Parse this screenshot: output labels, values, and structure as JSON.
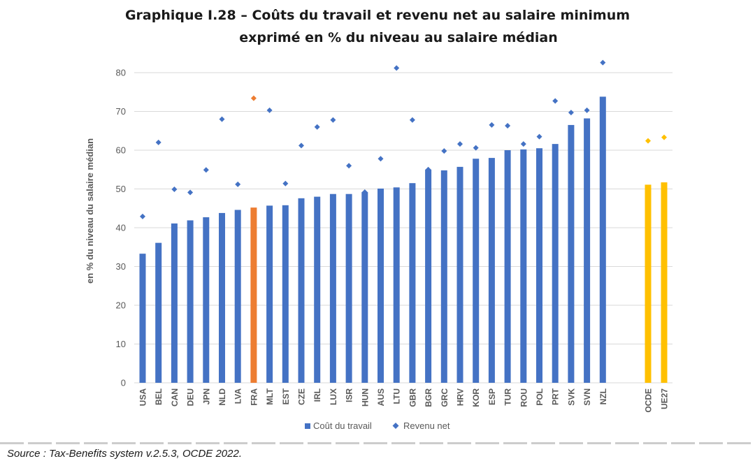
{
  "title_line1": "Graphique I.28 – Coûts du travail et revenu net au salaire minimum",
  "title_line2": "exprimé en % du niveau au salaire médian",
  "source": "Source : Tax-Benefits system v.2.5.3, OCDE 2022.",
  "colors": {
    "bar": "#4472c4",
    "bar_highlight": "#ed7d31",
    "bar_aggregate": "#ffc000",
    "grid": "#d9d9d9",
    "text": "#595959"
  },
  "chart_data": {
    "type": "bar",
    "ylabel": "en % du niveau du salaire médian",
    "ylim": [
      0,
      80
    ],
    "yticks": [
      0,
      10,
      20,
      30,
      40,
      50,
      60,
      70,
      80
    ],
    "grid": true,
    "legend_position": "bottom",
    "categories": [
      "USA",
      "BEL",
      "CAN",
      "DEU",
      "JPN",
      "NLD",
      "LVA",
      "FRA",
      "MLT",
      "EST",
      "CZE",
      "IRL",
      "LUX",
      "ISR",
      "HUN",
      "AUS",
      "LTU",
      "GBR",
      "BGR",
      "GRC",
      "HRV",
      "KOR",
      "ESP",
      "TUR",
      "ROU",
      "POL",
      "PRT",
      "SVK",
      "SVN",
      "NZL",
      "OCDE",
      "UE27"
    ],
    "highlight": [
      "FRA"
    ],
    "aggregates": [
      "OCDE",
      "UE27"
    ],
    "series": [
      {
        "name": "Coût du travail",
        "kind": "bar",
        "values": [
          33.3,
          36.1,
          41.1,
          41.9,
          42.7,
          43.8,
          44.6,
          45.2,
          45.7,
          45.8,
          47.6,
          48.0,
          48.7,
          48.7,
          49.2,
          50.1,
          50.4,
          51.5,
          55.0,
          54.8,
          55.7,
          57.8,
          58.0,
          60.0,
          60.2,
          60.5,
          61.6,
          66.5,
          68.2,
          73.8,
          51.1,
          51.7
        ]
      },
      {
        "name": "Revenu net",
        "kind": "marker",
        "values": [
          42.9,
          62.0,
          49.9,
          49.1,
          54.9,
          68.0,
          51.2,
          73.4,
          70.3,
          51.4,
          61.2,
          66.0,
          67.8,
          56.0,
          49.2,
          57.8,
          81.2,
          67.8,
          55.0,
          59.8,
          61.6,
          60.6,
          66.5,
          66.3,
          61.6,
          63.5,
          72.7,
          69.7,
          70.3,
          82.6,
          62.4,
          63.3
        ]
      }
    ]
  }
}
